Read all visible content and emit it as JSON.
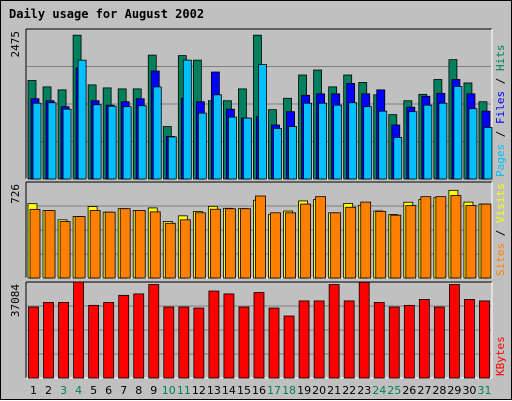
{
  "title": "Daily usage for August 2002",
  "colors": {
    "hits": "#00805c",
    "files": "#0000ff",
    "pages": "#00c0ff",
    "visits": "#ffff00",
    "sites": "#ff8000",
    "kbytes": "#ff0000",
    "plot_bg": "#c0c0c0",
    "title": "#0000ff",
    "weekend_day": "#00805c",
    "weekday": "#000000"
  },
  "side_labels": {
    "top": [
      {
        "text": "Pages",
        "color": "#00c0ff"
      },
      {
        "text": " / ",
        "color": "#000000"
      },
      {
        "text": "Files",
        "color": "#0000ff"
      },
      {
        "text": " / ",
        "color": "#000000"
      },
      {
        "text": "Hits",
        "color": "#00805c"
      }
    ],
    "middle": [
      {
        "text": "Sites",
        "color": "#ff8000"
      },
      {
        "text": " / ",
        "color": "#000000"
      },
      {
        "text": "Visits",
        "color": "#ffff00"
      }
    ],
    "bottom": [
      {
        "text": "KBytes",
        "color": "#ff0000"
      }
    ]
  },
  "chart_data": [
    {
      "type": "bar",
      "panel": "top",
      "ymax_label": "2475",
      "ylim": [
        0,
        2475
      ],
      "categories": [
        "1",
        "2",
        "3",
        "4",
        "5",
        "6",
        "7",
        "8",
        "9",
        "10",
        "11",
        "12",
        "13",
        "14",
        "15",
        "16",
        "17",
        "18",
        "19",
        "20",
        "21",
        "22",
        "23",
        "24",
        "25",
        "26",
        "27",
        "28",
        "29",
        "30",
        "31"
      ],
      "weekend_days": [
        3,
        4,
        10,
        11,
        17,
        18,
        24,
        25,
        31
      ],
      "series": [
        {
          "name": "Hits",
          "values": [
            1626,
            1520,
            1471,
            2373,
            1553,
            1503,
            1487,
            1487,
            2044,
            866,
            2036,
            1961,
            1291,
            1291,
            1487,
            2373,
            1144,
            1332,
            1716,
            1798,
            1520,
            1716,
            1593,
            1389,
            1062,
            1291,
            1397,
            1642,
            1969,
            1585,
            1275
          ]
        },
        {
          "name": "Files",
          "values": [
            1324,
            1291,
            1193,
            1830,
            1291,
            1218,
            1275,
            1324,
            1781,
            703,
            1332,
            1275,
            1765,
            1152,
            1005,
            1030,
            891,
            1111,
            1381,
            1405,
            1405,
            1577,
            1405,
            1471,
            891,
            1185,
            1364,
            1413,
            1642,
            1405,
            1119
          ]
        },
        {
          "name": "Pages",
          "values": [
            1250,
            1258,
            1152,
            1961,
            1225,
            1201,
            1193,
            1209,
            1520,
            695,
            1961,
            1087,
            1389,
            1021,
            1005,
            1888,
            834,
            866,
            1250,
            1250,
            1218,
            1258,
            1193,
            1119,
            686,
            1111,
            1218,
            1250,
            1528,
            1160,
            850
          ]
        }
      ]
    },
    {
      "type": "bar",
      "panel": "middle",
      "ymax_label": "726",
      "ylim": [
        0,
        726
      ],
      "series": [
        {
          "name": "Visits",
          "values": [
            562,
            510,
            440,
            465,
            540,
            498,
            524,
            511,
            530,
            428,
            470,
            503,
            542,
            527,
            524,
            588,
            481,
            506,
            583,
            593,
            493,
            564,
            550,
            507,
            480,
            573,
            593,
            607,
            663,
            574,
            559
          ]
        },
        {
          "name": "Sites",
          "values": [
            519,
            510,
            427,
            465,
            511,
            498,
            524,
            511,
            500,
            414,
            440,
            493,
            520,
            524,
            524,
            620,
            493,
            493,
            559,
            615,
            493,
            535,
            574,
            504,
            475,
            548,
            615,
            615,
            624,
            548,
            559
          ]
        }
      ]
    },
    {
      "type": "bar",
      "panel": "bottom",
      "ymax_label": "37084",
      "ylim": [
        0,
        37084
      ],
      "series": [
        {
          "name": "KBytes",
          "values": [
            27420,
            29196,
            29196,
            37084,
            28063,
            29196,
            31925,
            32485,
            36098,
            27420,
            27420,
            27028,
            33588,
            32485,
            27420,
            33005,
            27028,
            23942,
            29777,
            29777,
            36098,
            29777,
            36966,
            29196,
            27420,
            28063,
            30363,
            27420,
            36098,
            30363,
            29777
          ]
        }
      ]
    }
  ]
}
